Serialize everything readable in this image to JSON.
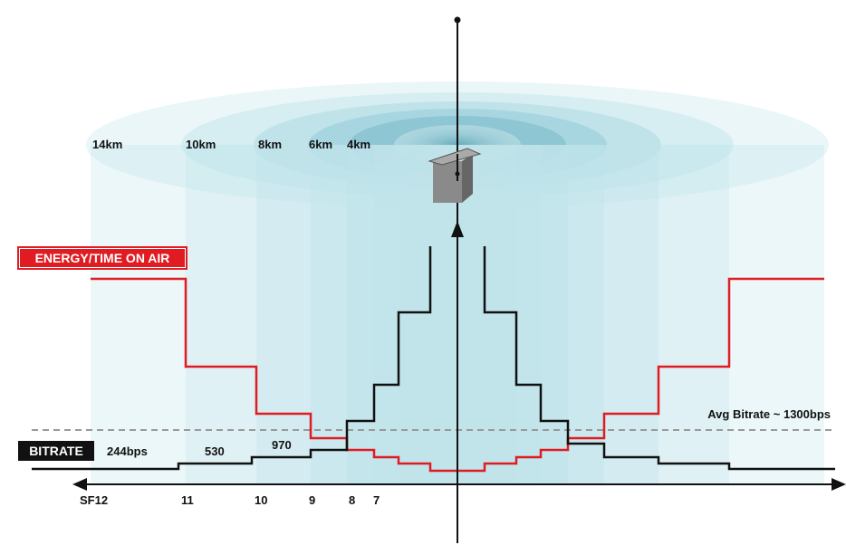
{
  "distances": [
    "14km",
    "10km",
    "8km",
    "6km",
    "4km"
  ],
  "energy_label": "ENERGY/TIME ON AIR",
  "bitrate_label": "BITRATE",
  "bitrates": [
    "244bps",
    "530",
    "970"
  ],
  "avg_bitrate": "Avg Bitrate ~ 1300bps",
  "spreading_factors": [
    "SF12",
    "11",
    "10",
    "9",
    "8",
    "7"
  ]
}
